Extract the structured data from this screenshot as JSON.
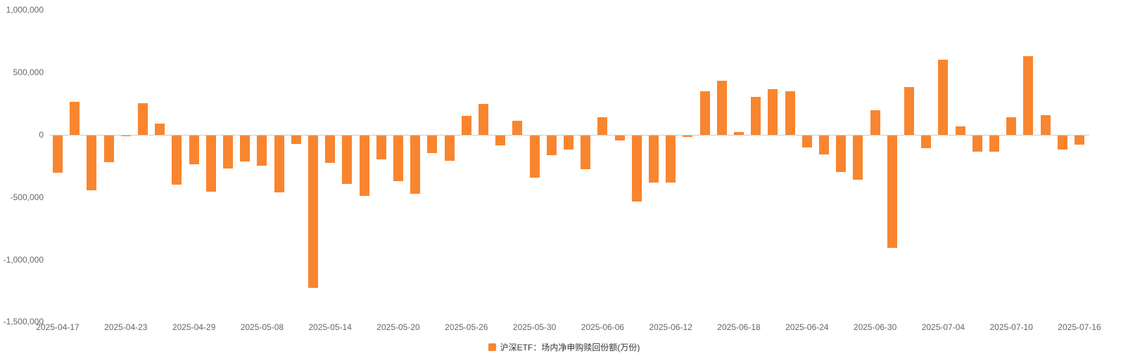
{
  "chart_data": {
    "type": "bar",
    "title": "",
    "series_name": "沪深ETF：场内净申购赎回份额(万份)",
    "categories": [
      "2025-04-17",
      "2025-04-18",
      "2025-04-21",
      "2025-04-22",
      "2025-04-23",
      "2025-04-24",
      "2025-04-25",
      "2025-04-28",
      "2025-04-29",
      "2025-04-30",
      "2025-05-06",
      "2025-05-07",
      "2025-05-08",
      "2025-05-09",
      "2025-05-12",
      "2025-05-13",
      "2025-05-14",
      "2025-05-15",
      "2025-05-16",
      "2025-05-19",
      "2025-05-20",
      "2025-05-21",
      "2025-05-22",
      "2025-05-23",
      "2025-05-26",
      "2025-05-27",
      "2025-05-28",
      "2025-05-29",
      "2025-05-30",
      "2025-06-03",
      "2025-06-04",
      "2025-06-05",
      "2025-06-06",
      "2025-06-09",
      "2025-06-10",
      "2025-06-11",
      "2025-06-12",
      "2025-06-13",
      "2025-06-16",
      "2025-06-17",
      "2025-06-18",
      "2025-06-19",
      "2025-06-20",
      "2025-06-23",
      "2025-06-24",
      "2025-06-25",
      "2025-06-26",
      "2025-06-27",
      "2025-06-30",
      "2025-07-01",
      "2025-07-02",
      "2025-07-03",
      "2025-07-04",
      "2025-07-07",
      "2025-07-08",
      "2025-07-09",
      "2025-07-10",
      "2025-07-11",
      "2025-07-14",
      "2025-07-15",
      "2025-07-16"
    ],
    "values": [
      -300000,
      265000,
      -440000,
      -215000,
      -8000,
      255000,
      90000,
      -395000,
      -230000,
      -450000,
      -265000,
      -210000,
      -240000,
      -455000,
      -70000,
      -1220000,
      -220000,
      -390000,
      -485000,
      -190000,
      -365000,
      -470000,
      -140000,
      -200000,
      150000,
      245000,
      -80000,
      110000,
      -340000,
      -160000,
      -110000,
      -270000,
      140000,
      -40000,
      -530000,
      -380000,
      -380000,
      -10000,
      350000,
      435000,
      20000,
      305000,
      365000,
      350000,
      -95000,
      -150000,
      -290000,
      -355000,
      195000,
      -900000,
      385000,
      -100000,
      600000,
      70000,
      -130000,
      -130000,
      140000,
      630000,
      160000,
      -110000,
      -75000
    ],
    "y_ticks": [
      1000000,
      500000,
      0,
      -500000,
      -1000000,
      -1500000
    ],
    "ylim": [
      -1500000,
      1000000
    ],
    "x_tick_every": 4,
    "x_tick_labels": [
      "2025-04-17",
      "2025-04-23",
      "2025-04-29",
      "2025-05-08",
      "2025-05-14",
      "2025-05-20",
      "2025-05-26",
      "2025-05-30",
      "2025-06-06",
      "2025-06-12",
      "2025-06-18",
      "2025-06-24",
      "2025-06-30",
      "2025-07-04",
      "2025-07-10",
      "2025-07-16"
    ],
    "xlabel": "",
    "ylabel": "",
    "grid": false,
    "legend_position": "bottom",
    "colors": {
      "bar": "#f9852f",
      "axis_text": "#666666",
      "legend_text": "#333333",
      "zero_line": "#cccccc"
    }
  },
  "legend": {
    "label": "沪深ETF：场内净申购赎回份额(万份)"
  }
}
